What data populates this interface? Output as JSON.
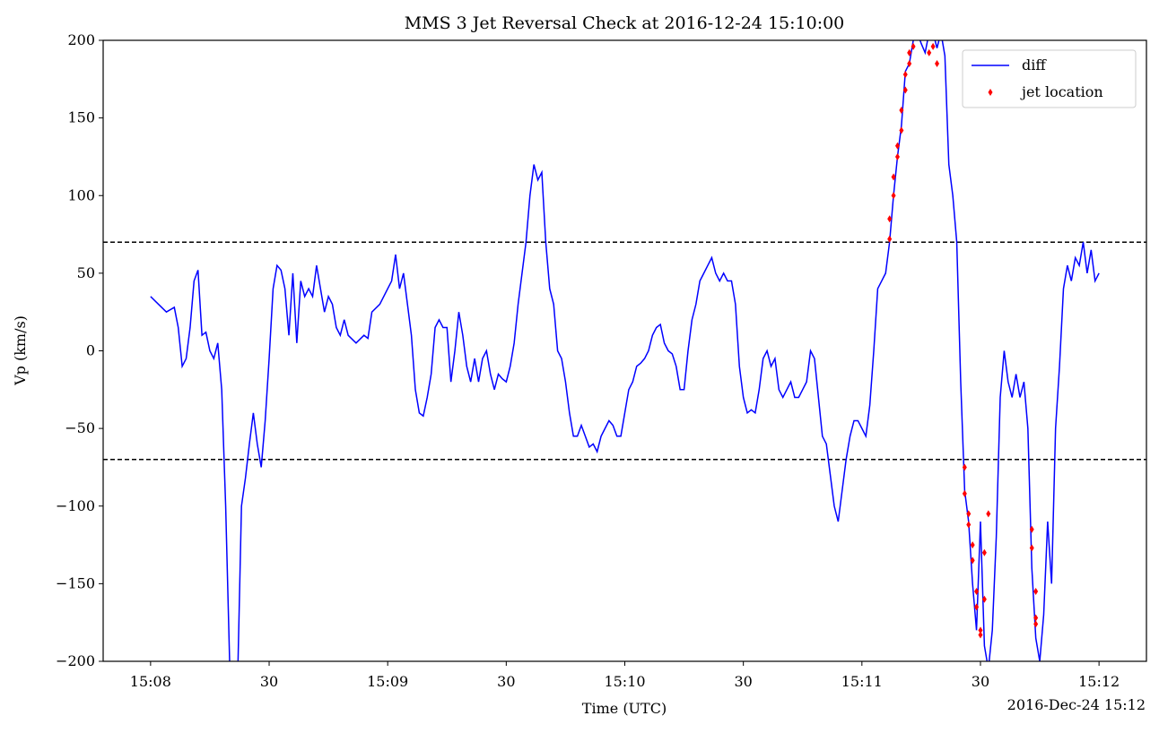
{
  "chart_data": {
    "type": "line",
    "title": "MMS 3 Jet Reversal Check at 2016-12-24 15:10:00",
    "x_label": "Time (UTC)",
    "y_label": "Vp (km/s)",
    "offset_label": "2016-Dec-24 15:12",
    "xlim": [
      "15:07:48",
      "15:12:12"
    ],
    "xticks": [
      {
        "value": "15:08:00",
        "label": "15:08"
      },
      {
        "value": "15:08:30",
        "label": "30"
      },
      {
        "value": "15:09:00",
        "label": "15:09"
      },
      {
        "value": "15:09:30",
        "label": "30"
      },
      {
        "value": "15:10:00",
        "label": "15:10"
      },
      {
        "value": "15:10:30",
        "label": "30"
      },
      {
        "value": "15:11:00",
        "label": "15:11"
      },
      {
        "value": "15:11:30",
        "label": "30"
      },
      {
        "value": "15:12:00",
        "label": "15:12"
      }
    ],
    "ylim": [
      -200,
      200
    ],
    "yticks": [
      {
        "value": -200,
        "label": "−200"
      },
      {
        "value": -150,
        "label": "−150"
      },
      {
        "value": -100,
        "label": "−100"
      },
      {
        "value": -50,
        "label": "−50"
      },
      0,
      50,
      100,
      150,
      200
    ],
    "hlines": [
      70,
      -70
    ],
    "legend": "upper right",
    "series": [
      {
        "name": "diff",
        "type": "line",
        "color": "#0000ff",
        "x": [
          "15:08:00",
          "15:08:02",
          "15:08:04",
          "15:08:06",
          "15:08:07",
          "15:08:08",
          "15:08:09",
          "15:08:10",
          "15:08:11",
          "15:08:12",
          "15:08:13",
          "15:08:14",
          "15:08:15",
          "15:08:16",
          "15:08:17",
          "15:08:18",
          "15:08:19",
          "15:08:20",
          "15:08:21",
          "15:08:22",
          "15:08:23",
          "15:08:24",
          "15:08:25",
          "15:08:26",
          "15:08:27",
          "15:08:28",
          "15:08:29",
          "15:08:30",
          "15:08:31",
          "15:08:32",
          "15:08:33",
          "15:08:34",
          "15:08:35",
          "15:08:36",
          "15:08:37",
          "15:08:38",
          "15:08:39",
          "15:08:40",
          "15:08:41",
          "15:08:42",
          "15:08:43",
          "15:08:44",
          "15:08:45",
          "15:08:46",
          "15:08:47",
          "15:08:48",
          "15:08:49",
          "15:08:50",
          "15:08:52",
          "15:08:54",
          "15:08:55",
          "15:08:56",
          "15:08:58",
          "15:09:00",
          "15:09:01",
          "15:09:02",
          "15:09:03",
          "15:09:04",
          "15:09:05",
          "15:09:06",
          "15:09:07",
          "15:09:08",
          "15:09:09",
          "15:09:10",
          "15:09:11",
          "15:09:12",
          "15:09:13",
          "15:09:14",
          "15:09:15",
          "15:09:16",
          "15:09:17",
          "15:09:18",
          "15:09:19",
          "15:09:20",
          "15:09:21",
          "15:09:22",
          "15:09:23",
          "15:09:24",
          "15:09:25",
          "15:09:26",
          "15:09:27",
          "15:09:28",
          "15:09:29",
          "15:09:30",
          "15:09:31",
          "15:09:32",
          "15:09:33",
          "15:09:34",
          "15:09:35",
          "15:09:36",
          "15:09:37",
          "15:09:38",
          "15:09:39",
          "15:09:40",
          "15:09:41",
          "15:09:42",
          "15:09:43",
          "15:09:44",
          "15:09:45",
          "15:09:46",
          "15:09:47",
          "15:09:48",
          "15:09:49",
          "15:09:50",
          "15:09:51",
          "15:09:52",
          "15:09:53",
          "15:09:54",
          "15:09:55",
          "15:09:56",
          "15:09:57",
          "15:09:58",
          "15:09:59",
          "15:10:00",
          "15:10:01",
          "15:10:02",
          "15:10:03",
          "15:10:04",
          "15:10:05",
          "15:10:06",
          "15:10:07",
          "15:10:08",
          "15:10:09",
          "15:10:10",
          "15:10:11",
          "15:10:12",
          "15:10:13",
          "15:10:14",
          "15:10:15",
          "15:10:16",
          "15:10:17",
          "15:10:18",
          "15:10:19",
          "15:10:20",
          "15:10:21",
          "15:10:22",
          "15:10:23",
          "15:10:24",
          "15:10:25",
          "15:10:26",
          "15:10:27",
          "15:10:28",
          "15:10:29",
          "15:10:30",
          "15:10:31",
          "15:10:32",
          "15:10:33",
          "15:10:34",
          "15:10:35",
          "15:10:36",
          "15:10:37",
          "15:10:38",
          "15:10:39",
          "15:10:40",
          "15:10:41",
          "15:10:42",
          "15:10:43",
          "15:10:44",
          "15:10:45",
          "15:10:46",
          "15:10:47",
          "15:10:48",
          "15:10:49",
          "15:10:50",
          "15:10:51",
          "15:10:52",
          "15:10:53",
          "15:10:54",
          "15:10:55",
          "15:10:56",
          "15:10:57",
          "15:10:58",
          "15:10:59",
          "15:11:00",
          "15:11:01",
          "15:11:02",
          "15:11:03",
          "15:11:04",
          "15:11:05",
          "15:11:06",
          "15:11:07",
          "15:11:08",
          "15:11:09",
          "15:11:10",
          "15:11:11",
          "15:11:12",
          "15:11:13",
          "15:11:14",
          "15:11:15",
          "15:11:16",
          "15:11:17",
          "15:11:18",
          "15:11:19",
          "15:11:20",
          "15:11:21",
          "15:11:22",
          "15:11:23",
          "15:11:24",
          "15:11:25",
          "15:11:26",
          "15:11:27",
          "15:11:28",
          "15:11:29",
          "15:11:30",
          "15:11:31",
          "15:11:32",
          "15:11:33",
          "15:11:34",
          "15:11:35",
          "15:11:36",
          "15:11:37",
          "15:11:38",
          "15:11:39",
          "15:11:40",
          "15:11:41",
          "15:11:42",
          "15:11:43",
          "15:11:44",
          "15:11:45",
          "15:11:46",
          "15:11:47",
          "15:11:48",
          "15:11:49",
          "15:11:50",
          "15:11:51",
          "15:11:52",
          "15:11:53",
          "15:11:54",
          "15:11:55",
          "15:11:56",
          "15:11:57",
          "15:11:58",
          "15:11:59",
          "15:12:00"
        ],
        "values": [
          35,
          30,
          25,
          28,
          15,
          -10,
          -5,
          15,
          45,
          52,
          10,
          12,
          0,
          -5,
          5,
          -25,
          -100,
          -200,
          -215,
          -215,
          -100,
          -82,
          -60,
          -40,
          -60,
          -75,
          -45,
          -5,
          40,
          55,
          52,
          40,
          10,
          50,
          5,
          45,
          35,
          40,
          35,
          55,
          40,
          25,
          35,
          30,
          15,
          10,
          20,
          10,
          5,
          10,
          8,
          25,
          30,
          40,
          45,
          62,
          40,
          50,
          30,
          10,
          -25,
          -40,
          -42,
          -30,
          -15,
          15,
          20,
          15,
          15,
          -20,
          0,
          25,
          10,
          -10,
          -20,
          -5,
          -20,
          -5,
          0,
          -15,
          -25,
          -15,
          -18,
          -20,
          -10,
          5,
          30,
          50,
          70,
          100,
          120,
          110,
          115,
          70,
          40,
          30,
          0,
          -5,
          -20,
          -40,
          -55,
          -55,
          -48,
          -55,
          -62,
          -60,
          -65,
          -55,
          -50,
          -45,
          -48,
          -55,
          -55,
          -40,
          -25,
          -20,
          -10,
          -8,
          -5,
          0,
          10,
          15,
          17,
          5,
          0,
          -2,
          -10,
          -25,
          -25,
          0,
          20,
          30,
          45,
          50,
          55,
          60,
          50,
          45,
          50,
          45,
          45,
          30,
          -10,
          -30,
          -40,
          -38,
          -40,
          -25,
          -5,
          0,
          -10,
          -5,
          -25,
          -30,
          -25,
          -20,
          -30,
          -30,
          -25,
          -20,
          0,
          -5,
          -30,
          -55,
          -60,
          -80,
          -100,
          -110,
          -90,
          -70,
          -55,
          -45,
          -45,
          -50,
          -55,
          -35,
          0,
          40,
          45,
          50,
          70,
          100,
          125,
          145,
          180,
          185,
          200,
          205,
          198,
          192,
          205,
          205,
          195,
          205,
          190,
          120,
          100,
          70,
          -20,
          -90,
          -110,
          -150,
          -180,
          -110,
          -190,
          -205,
          -180,
          -120,
          -30,
          0,
          -20,
          -30,
          -15,
          -30,
          -20,
          -50,
          -140,
          -185,
          -200,
          -170,
          -110,
          -150,
          -50,
          -10,
          40,
          55,
          45,
          60,
          55,
          70,
          50,
          65,
          45,
          50
        ]
      },
      {
        "name": "jet location",
        "type": "scatter",
        "color": "#ff0000",
        "x": [
          "15:11:07",
          "15:11:07",
          "15:11:08",
          "15:11:08",
          "15:11:09",
          "15:11:09",
          "15:11:10",
          "15:11:10",
          "15:11:11",
          "15:11:11",
          "15:11:12",
          "15:11:12",
          "15:11:13",
          "15:11:17",
          "15:11:18",
          "15:11:19",
          "15:11:26",
          "15:11:26",
          "15:11:27",
          "15:11:27",
          "15:11:28",
          "15:11:28",
          "15:11:29",
          "15:11:29",
          "15:11:30",
          "15:11:30",
          "15:11:31",
          "15:11:31",
          "15:11:32",
          "15:11:43",
          "15:11:43",
          "15:11:44",
          "15:11:44",
          "15:11:44"
        ],
        "values": [
          72,
          85,
          100,
          112,
          125,
          132,
          142,
          155,
          168,
          178,
          185,
          192,
          196,
          192,
          196,
          185,
          -75,
          -92,
          -105,
          -112,
          -125,
          -135,
          -155,
          -165,
          -180,
          -183,
          -160,
          -130,
          -105,
          -115,
          -127,
          -155,
          -172,
          -176
        ]
      }
    ]
  }
}
